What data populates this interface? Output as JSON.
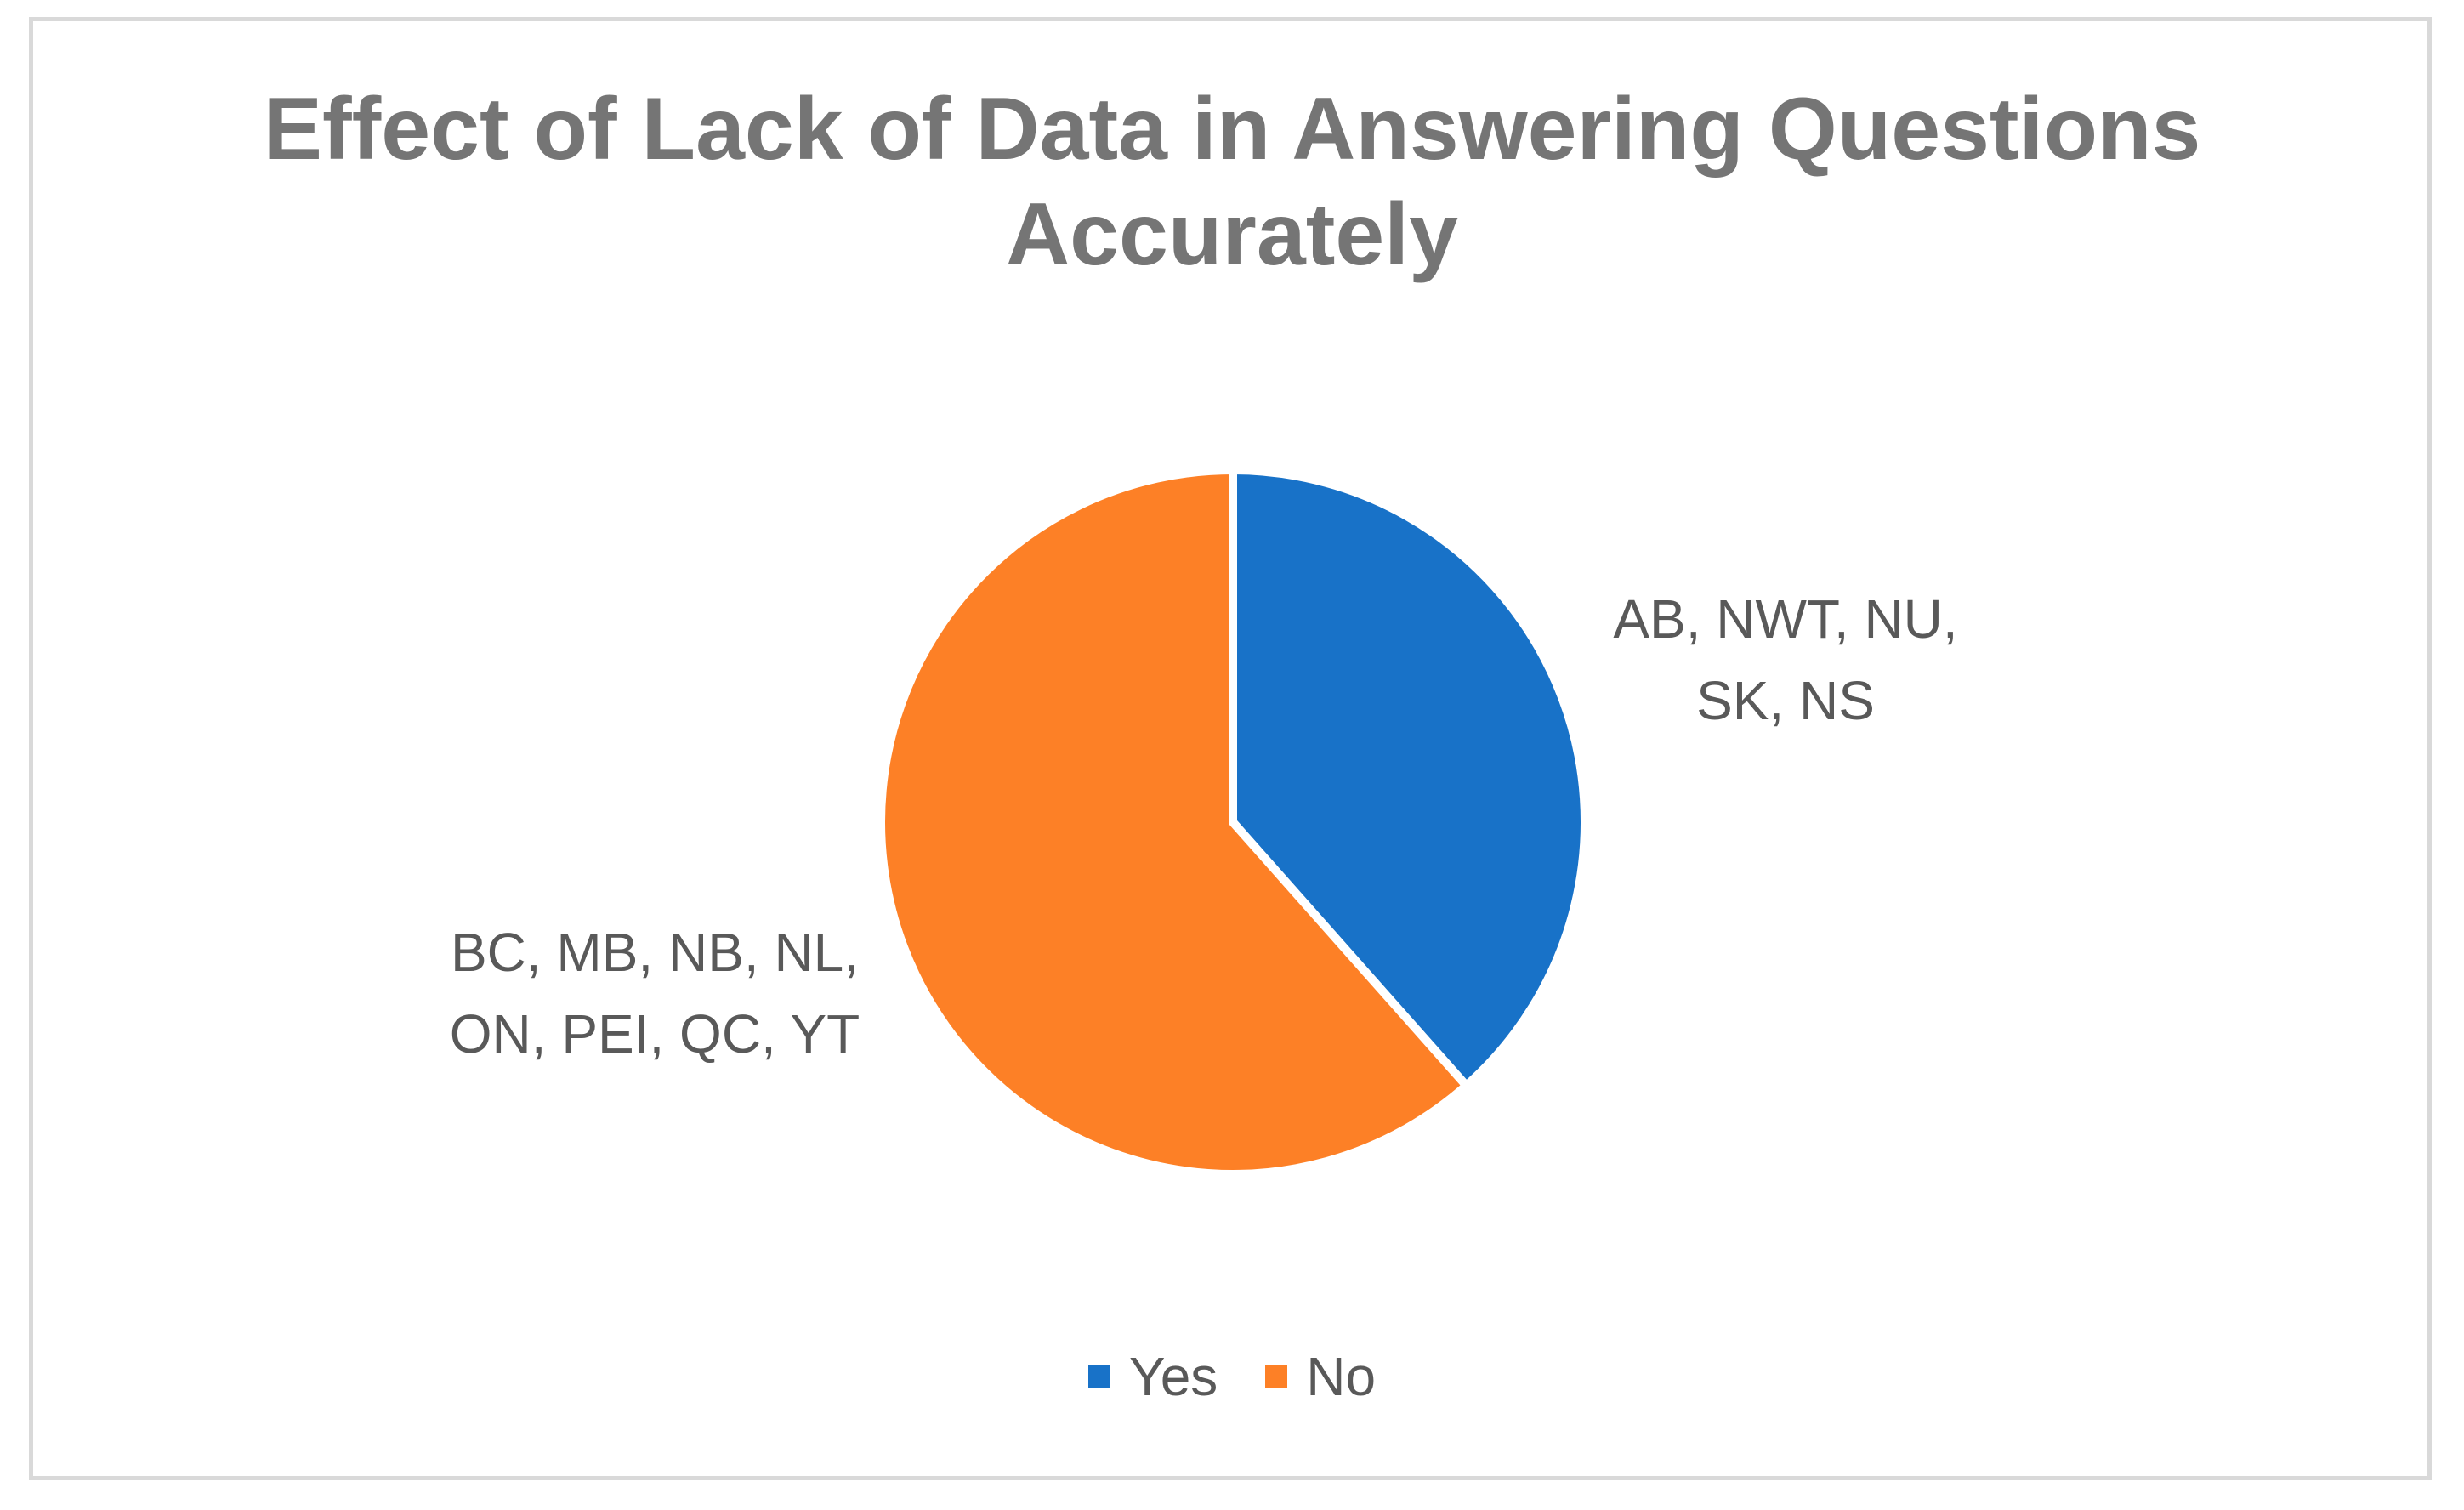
{
  "chart_data": {
    "type": "pie",
    "title": "Effect of Lack of Data in Answering Questions Accurately",
    "title_lines": [
      "Effect of Lack of Data in Answering Questions",
      "Accurately"
    ],
    "categories": [
      "Yes",
      "No"
    ],
    "values": [
      5,
      8
    ],
    "colors": [
      "#1872C8",
      "#FD8026"
    ],
    "slice_labels": [
      [
        "AB, NWT, NU,",
        "SK, NS"
      ],
      [
        "BC, MB, NB, NL,",
        "ON, PEI, QC, YT"
      ]
    ],
    "legend_position": "bottom",
    "start_angle_deg": 0,
    "direction": "clockwise"
  }
}
